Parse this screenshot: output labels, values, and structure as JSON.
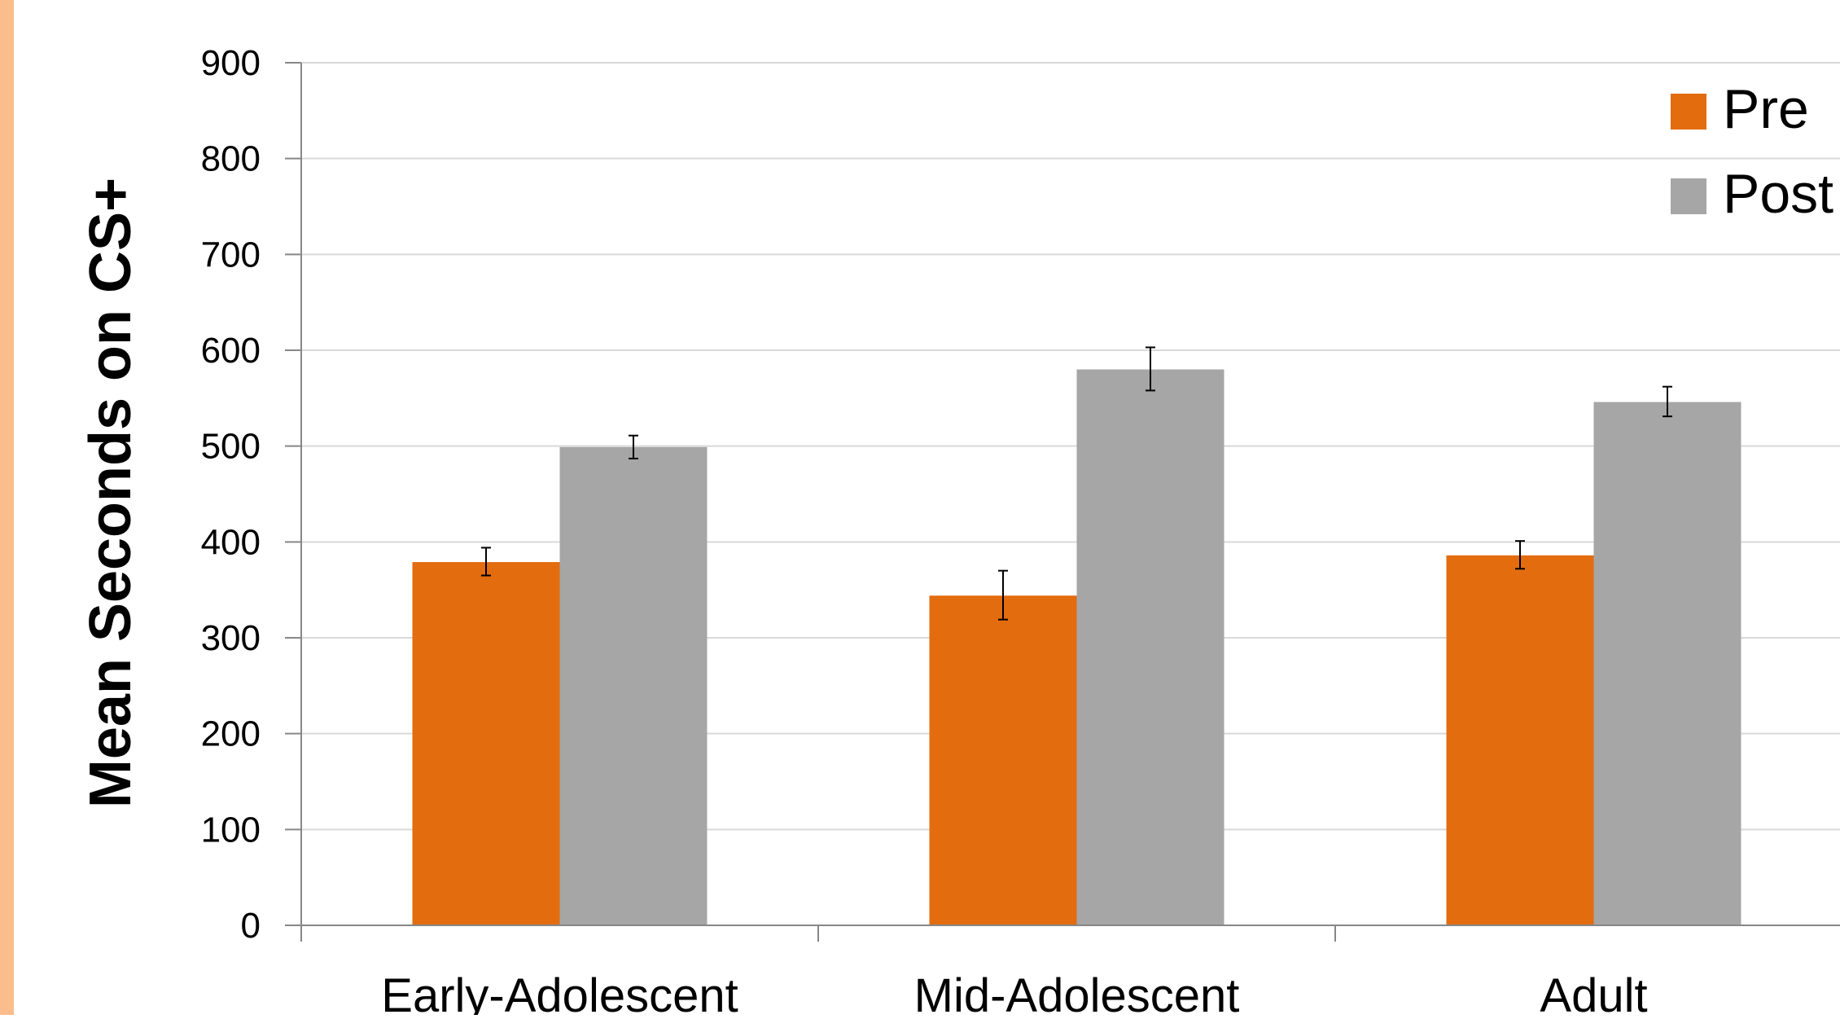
{
  "colors": {
    "left_stripe": "#fbbd8b",
    "pre": "#e36c0e",
    "post": "#a6a6a6",
    "gridline": "#d9d9d9",
    "axis": "#878787",
    "error_bar": "#000000"
  },
  "chart_data": {
    "type": "bar",
    "title": "",
    "xlabel": "",
    "ylabel": "Mean Seconds on CS+",
    "ylim": [
      0,
      900
    ],
    "ytick_step": 100,
    "yticks": [
      "0",
      "100",
      "200",
      "300",
      "400",
      "500",
      "600",
      "700",
      "800",
      "900"
    ],
    "grid": true,
    "legend_position": "top-right",
    "categories": [
      "Early-Adolescent",
      "Mid-Adolescent",
      "Adult"
    ],
    "series": [
      {
        "name": "Pre",
        "color": "#e36c0e",
        "values": [
          379,
          344,
          386
        ],
        "error_low": [
          365,
          319,
          372
        ],
        "error_high": [
          394,
          370,
          401
        ]
      },
      {
        "name": "Post",
        "color": "#a6a6a6",
        "values": [
          499,
          580,
          546
        ],
        "error_low": [
          487,
          558,
          531
        ],
        "error_high": [
          511,
          603,
          562
        ]
      }
    ]
  }
}
